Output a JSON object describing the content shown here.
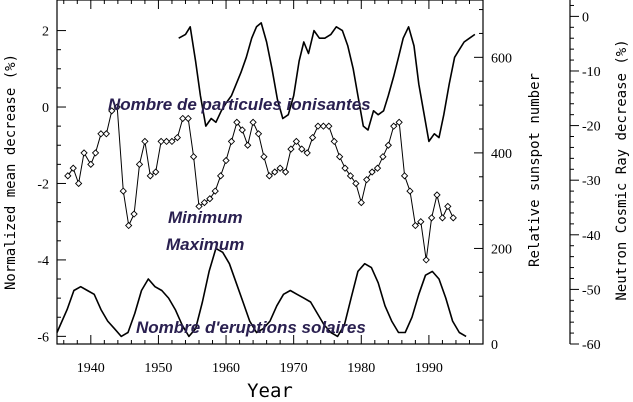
{
  "chart_data": {
    "type": "line",
    "xlabel": "Year",
    "ylabel_left": "Normalized mean decrease (%)",
    "ylabel_middle": "Relative sunspot number",
    "ylabel_right": "Neutron Cosmic Ray decrease (%)",
    "xlim": [
      1935,
      1998
    ],
    "ylim_left": [
      -6.2,
      2.8
    ],
    "ylim_middle": [
      0,
      720
    ],
    "ylim_right": [
      -60,
      3
    ],
    "x_ticks": [
      "1940",
      "1950",
      "1960",
      "1970",
      "1980",
      "1990"
    ],
    "y_ticks_left": [
      "2",
      "0",
      "-2",
      "-4",
      "-6"
    ],
    "y_ticks_middle": [
      "600",
      "400",
      "200",
      "0"
    ],
    "y_ticks_right": [
      "0",
      "-10",
      "-20",
      "-30",
      "-40",
      "-50",
      "-60"
    ],
    "annotations": {
      "ionising": "Nombre de particules ionisantes",
      "minimum": "Minimum",
      "maximum": "Maximum",
      "flares": "Nombre d'eruptions solaires"
    },
    "series": [
      {
        "axis": "left",
        "markers": true,
        "x": [
          1936.6,
          1937.4,
          1938.2,
          1939.0,
          1940.0,
          1940.7,
          1941.5,
          1942.3,
          1943.1,
          1943.9,
          1944.8,
          1945.6,
          1946.4,
          1947.2,
          1948.0,
          1948.8,
          1949.6,
          1950.4,
          1951.2,
          1952.0,
          1952.8,
          1953.6,
          1954.4,
          1955.2,
          1956.0,
          1956.8,
          1957.6,
          1958.4,
          1959.2,
          1960.0,
          1960.8,
          1961.6,
          1962.4,
          1963.2,
          1964.0,
          1964.8,
          1965.6,
          1966.4,
          1967.2,
          1968.0,
          1968.8,
          1969.6,
          1970.4,
          1971.2,
          1972.0,
          1972.8,
          1973.6,
          1974.4,
          1975.2,
          1976.0,
          1976.8,
          1977.6,
          1978.4,
          1979.2,
          1980.0,
          1980.8,
          1981.6,
          1982.4,
          1983.2,
          1984.0,
          1984.8,
          1985.6,
          1986.4,
          1987.2,
          1988.0,
          1988.8,
          1989.6,
          1990.4,
          1991.2,
          1992.0,
          1992.8,
          1993.6
        ],
        "y": [
          -1.8,
          -1.6,
          -2.0,
          -1.2,
          -1.5,
          -1.2,
          -0.7,
          -0.7,
          -0.1,
          0.0,
          -2.2,
          -3.1,
          -2.8,
          -1.5,
          -0.9,
          -1.8,
          -1.7,
          -0.9,
          -0.9,
          -0.9,
          -0.8,
          -0.3,
          -0.3,
          -1.3,
          -2.6,
          -2.5,
          -2.4,
          -2.2,
          -1.8,
          -1.4,
          -0.9,
          -0.4,
          -0.6,
          -1.0,
          -0.4,
          -0.7,
          -1.3,
          -1.8,
          -1.7,
          -1.6,
          -1.7,
          -1.1,
          -0.9,
          -1.1,
          -1.2,
          -0.8,
          -0.5,
          -0.5,
          -0.5,
          -0.9,
          -1.3,
          -1.6,
          -1.8,
          -2.0,
          -2.5,
          -1.9,
          -1.7,
          -1.6,
          -1.3,
          -1.0,
          -0.5,
          -0.4,
          -1.8,
          -2.2,
          -3.1,
          -3.0,
          -4.0,
          -2.9,
          -2.3,
          -2.9,
          -2.6,
          -2.9
        ]
      },
      {
        "axis": "left",
        "markers": false,
        "x": [
          1935,
          1936.5,
          1937.5,
          1938.5,
          1939.5,
          1940.5,
          1941.5,
          1942.5,
          1943.5,
          1944.5,
          1945.5,
          1946.5,
          1947.5,
          1948.5,
          1949.5,
          1950.5,
          1951.5,
          1952.5,
          1953.5,
          1954.5,
          1955.5,
          1956.5,
          1957.5,
          1958.5,
          1959.5,
          1960.5,
          1961.5,
          1962.5,
          1963.5,
          1964.5,
          1965.5,
          1966.5,
          1967.5,
          1968.5,
          1969.5,
          1970.5,
          1971.5,
          1972.5,
          1973.5,
          1974.5,
          1975.5,
          1976.5,
          1977.5,
          1978.5,
          1979.5,
          1980.5,
          1981.5,
          1982.5,
          1983.5,
          1984.5,
          1985.5,
          1986.5,
          1987.5,
          1988.5,
          1989.5,
          1990.5,
          1991.5,
          1992.5,
          1993.5,
          1994.5,
          1995.5
        ],
        "y": [
          -5.9,
          -5.3,
          -4.8,
          -4.7,
          -4.8,
          -4.9,
          -5.3,
          -5.6,
          -5.8,
          -6.0,
          -5.9,
          -5.4,
          -4.8,
          -4.5,
          -4.7,
          -4.8,
          -5.0,
          -5.3,
          -5.7,
          -6.0,
          -5.8,
          -5.1,
          -4.3,
          -3.7,
          -3.8,
          -4.1,
          -4.6,
          -5.1,
          -5.6,
          -5.9,
          -5.8,
          -5.6,
          -5.2,
          -4.9,
          -4.8,
          -4.9,
          -5.0,
          -5.1,
          -5.4,
          -5.7,
          -5.9,
          -6.0,
          -5.7,
          -5.0,
          -4.3,
          -4.1,
          -4.2,
          -4.6,
          -5.2,
          -5.6,
          -5.9,
          -5.9,
          -5.5,
          -4.9,
          -4.4,
          -4.3,
          -4.5,
          -5.0,
          -5.6,
          -5.9,
          -6.0
        ]
      },
      {
        "axis": "left",
        "markers": false,
        "x": [
          1953.0,
          1954.0,
          1954.7,
          1955.5,
          1956.2,
          1957.0,
          1957.8,
          1958.5,
          1959.3,
          1960.0,
          1960.8,
          1961.5,
          1962.2,
          1963.0,
          1963.8,
          1964.5,
          1965.2,
          1966.0,
          1966.8,
          1967.6,
          1968.4,
          1969.2,
          1970.0,
          1970.8,
          1971.5,
          1972.2,
          1973.0,
          1973.8,
          1974.6,
          1975.5,
          1976.3,
          1977.2,
          1978.0,
          1978.8,
          1979.5,
          1980.3,
          1981.0,
          1981.8,
          1982.5,
          1983.3,
          1984.0,
          1984.8,
          1985.5,
          1986.2,
          1987.0,
          1987.8,
          1988.5,
          1989.2,
          1990.0,
          1990.8,
          1991.5,
          1992.2,
          1993.0,
          1993.8,
          1994.5,
          1995.2,
          1996.0,
          1996.8
        ],
        "y": [
          1.8,
          1.9,
          2.1,
          1.2,
          0.3,
          -0.5,
          -0.3,
          -0.4,
          -0.1,
          0.1,
          0.3,
          0.6,
          0.9,
          1.3,
          1.8,
          2.1,
          2.2,
          1.7,
          1.0,
          0.2,
          -0.3,
          -0.2,
          0.3,
          1.2,
          1.7,
          1.4,
          2.0,
          1.8,
          1.8,
          1.9,
          2.1,
          2.0,
          1.6,
          1.0,
          0.3,
          -0.5,
          -0.6,
          -0.1,
          -0.2,
          -0.1,
          0.3,
          0.8,
          1.3,
          1.8,
          2.1,
          1.6,
          0.6,
          -0.1,
          -0.9,
          -0.7,
          -0.8,
          -0.2,
          0.6,
          1.3,
          1.5,
          1.7,
          1.8,
          1.9
        ]
      }
    ]
  }
}
